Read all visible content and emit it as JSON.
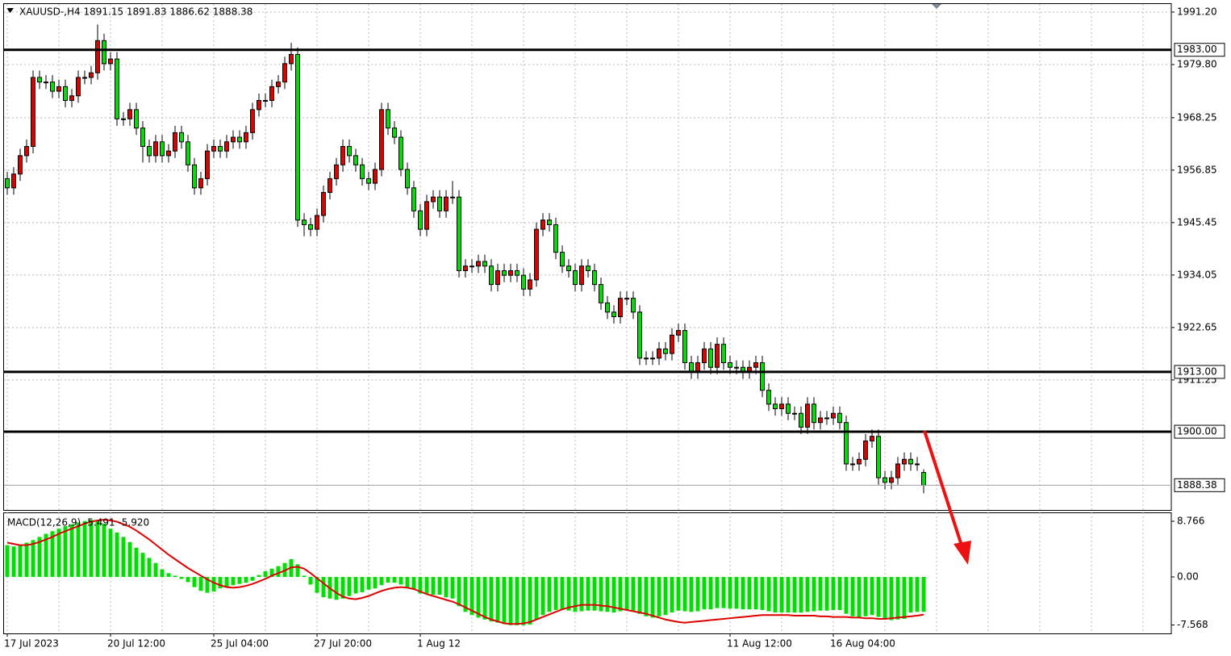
{
  "chart_data": [
    {
      "type": "candlestick",
      "title": "XAUUSD-,H4  1891.15 1891.83 1886.62 1888.38",
      "categories": [
        "17 Jul 2023",
        null,
        null,
        null,
        null,
        null,
        null,
        null,
        null,
        null,
        null,
        null,
        null,
        null,
        null,
        null,
        "20 Jul 12:00",
        null,
        null,
        null,
        null,
        null,
        null,
        null,
        null,
        null,
        null,
        null,
        null,
        null,
        null,
        null,
        "25 Jul 04:00",
        null,
        null,
        null,
        null,
        null,
        null,
        null,
        null,
        null,
        null,
        null,
        null,
        null,
        null,
        null,
        "27 Jul 20:00",
        null,
        null,
        null,
        null,
        null,
        null,
        null,
        null,
        null,
        null,
        null,
        null,
        null,
        null,
        null,
        "1 Aug 12",
        null,
        null,
        null,
        null,
        null,
        null,
        null,
        null,
        null,
        null,
        null,
        null,
        null,
        null,
        null,
        null,
        null,
        null,
        null,
        null,
        null,
        null,
        null,
        null,
        null,
        null,
        null,
        null,
        null,
        null,
        null,
        null,
        null,
        null,
        null,
        null,
        null,
        null,
        null,
        null,
        null,
        null,
        null,
        null,
        null,
        null,
        null,
        "11 Aug 12:00",
        null,
        null,
        null,
        null,
        null,
        null,
        null,
        null,
        null,
        null,
        null,
        null,
        null,
        null,
        null,
        "16 Aug 04:00",
        null,
        null,
        null,
        null,
        null,
        null,
        null,
        null,
        null,
        null,
        null,
        null,
        null,
        null
      ],
      "open": [
        1955,
        1953,
        1956,
        1960,
        1962,
        1977,
        1976,
        1976,
        1974,
        1975,
        1972,
        1973,
        1977,
        1977,
        1978,
        1985,
        1980,
        1981,
        1968,
        1968,
        1970,
        1966,
        1962,
        1960,
        1963,
        1960,
        1961,
        1965,
        1963,
        1958,
        1953,
        1955,
        1961,
        1962,
        1961,
        1963,
        1964,
        1963,
        1965,
        1970,
        1972,
        1972,
        1975,
        1976,
        1980,
        1982,
        1946,
        1945,
        1944,
        1947,
        1952,
        1955,
        1958,
        1962,
        1960,
        1958,
        1955,
        1954,
        1957,
        1970,
        1966,
        1964,
        1957,
        1953,
        1948,
        1944,
        1950,
        1951,
        1948,
        1951,
        1951,
        1935,
        1936,
        1936,
        1937,
        1936,
        1932,
        1935,
        1934,
        1935,
        1934,
        1931,
        1933,
        1944,
        1946,
        1945,
        1939,
        1936,
        1935,
        1932,
        1936,
        1935,
        1932,
        1928,
        1926,
        1925,
        1929,
        1929,
        1926,
        1916,
        1916,
        1916,
        1918,
        1917,
        1921,
        1922,
        1915,
        1913,
        1915,
        1918,
        1914,
        1919,
        1915,
        1914,
        1914,
        1913,
        1914,
        1915,
        1909,
        1906,
        1905,
        1906,
        1904,
        1904,
        1901,
        1906,
        1902,
        1903,
        1903,
        1904,
        1902,
        1893,
        1893,
        1894,
        1898,
        1899,
        1890,
        1889,
        1890,
        1893,
        1894,
        1893,
        1891.15
      ],
      "high": [
        1956.5,
        1957.5,
        1961.5,
        1963.5,
        1978.5,
        1978.5,
        1977.5,
        1977.5,
        1976.5,
        1976.5,
        1974.5,
        1978.5,
        1978.5,
        1979.5,
        1988.5,
        1986.5,
        1982.5,
        1982.5,
        1969.5,
        1971.5,
        1971.5,
        1967.5,
        1963.5,
        1964.5,
        1964.5,
        1962.5,
        1966.5,
        1966.5,
        1964.5,
        1959.5,
        1956.5,
        1962.5,
        1963.5,
        1963.5,
        1964.5,
        1965.5,
        1965.5,
        1966.5,
        1971.5,
        1973.5,
        1973.5,
        1976.5,
        1977.5,
        1981.5,
        1984.5,
        1983.5,
        1947.5,
        1946.5,
        1948.5,
        1953.5,
        1956.5,
        1959.5,
        1963.5,
        1963.5,
        1961.5,
        1959.5,
        1956.5,
        1958.5,
        1971.5,
        1971.5,
        1967.5,
        1965.5,
        1958.5,
        1954.5,
        1949.5,
        1951.5,
        1952.5,
        1952.5,
        1952.5,
        1954.5,
        1952.5,
        1937.5,
        1937.5,
        1938.5,
        1938.5,
        1937.5,
        1936.5,
        1936.5,
        1936.5,
        1936.5,
        1935.5,
        1934.5,
        1945.5,
        1947.5,
        1947.5,
        1946.5,
        1940.5,
        1937.5,
        1936.5,
        1937.5,
        1937.5,
        1936.5,
        1933.5,
        1929.5,
        1927.5,
        1930.5,
        1930.5,
        1930.5,
        1927.5,
        1917.5,
        1917.5,
        1919.5,
        1919.5,
        1922.5,
        1923.5,
        1923.5,
        1916.5,
        1916.5,
        1919.5,
        1919.5,
        1920.5,
        1920.5,
        1916.5,
        1915.5,
        1915.5,
        1915.5,
        1916.5,
        1916.5,
        1910.5,
        1907.5,
        1907.5,
        1907.5,
        1905.5,
        1905.5,
        1907.5,
        1907.5,
        1904.5,
        1904.5,
        1905.5,
        1905.5,
        1903.5,
        1894.5,
        1895.5,
        1899.5,
        1900.5,
        1900.5,
        1891.5,
        1891.5,
        1894.5,
        1895.5,
        1895.5,
        1894.5,
        1891.83
      ],
      "low": [
        1951.5,
        1951.5,
        1954.5,
        1958.5,
        1960.5,
        1974.5,
        1974.5,
        1972.5,
        1972.5,
        1970.5,
        1970.5,
        1971.5,
        1975.5,
        1975.5,
        1976.5,
        1978.5,
        1978.5,
        1966.5,
        1966.5,
        1966.5,
        1964.5,
        1958.5,
        1958.5,
        1958.5,
        1958.5,
        1958.5,
        1959.5,
        1961.5,
        1956.5,
        1951.5,
        1951.5,
        1953.5,
        1959.5,
        1959.5,
        1959.5,
        1961.5,
        1961.5,
        1961.5,
        1963.5,
        1968.5,
        1970.5,
        1970.5,
        1973.5,
        1974.5,
        1978.5,
        1944.5,
        1942.5,
        1942.5,
        1942.5,
        1945.5,
        1950.5,
        1953.5,
        1956.5,
        1958.5,
        1956.5,
        1953.5,
        1952.5,
        1952.5,
        1955.5,
        1964.5,
        1962.5,
        1955.5,
        1951.5,
        1946.5,
        1942.5,
        1942.5,
        1948.5,
        1946.5,
        1946.5,
        1949.5,
        1933.5,
        1933.5,
        1934.5,
        1934.5,
        1934.5,
        1930.5,
        1930.5,
        1932.5,
        1932.5,
        1932.5,
        1929.5,
        1929.5,
        1931.5,
        1942.5,
        1943.5,
        1937.5,
        1934.5,
        1933.5,
        1930.5,
        1930.5,
        1933.5,
        1930.5,
        1926.5,
        1924.5,
        1923.5,
        1923.5,
        1927.5,
        1924.5,
        1914.5,
        1914.5,
        1914.5,
        1914.5,
        1915.5,
        1915.5,
        1919.5,
        1913.5,
        1911.5,
        1911.5,
        1913.5,
        1912.5,
        1912.5,
        1913.5,
        1912.5,
        1912.5,
        1911.5,
        1911.5,
        1912.5,
        1907.5,
        1904.5,
        1903.5,
        1903.5,
        1902.5,
        1902.5,
        1899.5,
        1899.5,
        1900.5,
        1900.5,
        1901.5,
        1901.5,
        1900.5,
        1891.5,
        1891.5,
        1891.5,
        1892.5,
        1896.5,
        1888.5,
        1887.5,
        1887.5,
        1888.5,
        1891.5,
        1891.5,
        1891.5,
        1886.62
      ],
      "close": [
        1953,
        1956,
        1960,
        1962,
        1977,
        1976,
        1976,
        1974,
        1975,
        1972,
        1973,
        1977,
        1977,
        1978,
        1985,
        1980,
        1981,
        1968,
        1968,
        1970,
        1966,
        1962,
        1960,
        1963,
        1960,
        1961,
        1965,
        1963,
        1958,
        1953,
        1955,
        1961,
        1962,
        1961,
        1963,
        1964,
        1963,
        1965,
        1970,
        1972,
        1972,
        1975,
        1976,
        1980,
        1982,
        1946,
        1945,
        1944,
        1947,
        1952,
        1955,
        1958,
        1962,
        1960,
        1958,
        1955,
        1954,
        1957,
        1970,
        1966,
        1964,
        1957,
        1953,
        1948,
        1944,
        1950,
        1951,
        1948,
        1951,
        1951,
        1935,
        1936,
        1936,
        1937,
        1936,
        1932,
        1935,
        1934,
        1935,
        1934,
        1931,
        1933,
        1944,
        1946,
        1945,
        1939,
        1936,
        1935,
        1932,
        1936,
        1935,
        1932,
        1928,
        1926,
        1925,
        1929,
        1929,
        1926,
        1916,
        1916,
        1916,
        1918,
        1917,
        1921,
        1922,
        1915,
        1913,
        1915,
        1918,
        1914,
        1919,
        1915,
        1914,
        1914,
        1913,
        1914,
        1915,
        1909,
        1906,
        1905,
        1906,
        1904,
        1904,
        1901,
        1906,
        1902,
        1903,
        1903,
        1904,
        1902,
        1893,
        1893,
        1894,
        1898,
        1899,
        1890,
        1889,
        1890,
        1893,
        1894,
        1893,
        1893,
        1888.38
      ],
      "up_color": "#e00000",
      "down_color": "#00e000",
      "ylim": [
        1883.0,
        1992.95
      ],
      "yticks": [
        {
          "value": 1991.2,
          "label": "1991.20"
        },
        {
          "value": 1979.8,
          "label": "1979.80"
        },
        {
          "value": 1968.25,
          "label": "1968.25"
        },
        {
          "value": 1956.85,
          "label": "1956.85"
        },
        {
          "value": 1945.45,
          "label": "1945.45"
        },
        {
          "value": 1934.05,
          "label": "1934.05"
        },
        {
          "value": 1922.65,
          "label": "1922.65"
        },
        {
          "value": 1911.25,
          "label": "1911.25"
        }
      ],
      "levels": [
        {
          "value": 1983,
          "label": "1983.00"
        },
        {
          "value": 1913,
          "label": "1913.00"
        },
        {
          "value": 1900,
          "label": "1900.00"
        }
      ],
      "last_price": {
        "value": 1888.38,
        "label": "1888.38"
      },
      "grid": true
    },
    {
      "type": "macd",
      "title": "MACD(12,26,9) -5.491 -5.920",
      "histogram": [
        5.0,
        4.8,
        5.0,
        5.4,
        5.8,
        6.3,
        6.8,
        7.2,
        7.6,
        8.0,
        8.3,
        8.6,
        8.8,
        9.0,
        8.8,
        8.4,
        7.6,
        7.0,
        6.3,
        5.5,
        4.6,
        3.8,
        3.0,
        2.2,
        1.2,
        0.6,
        0.2,
        -0.3,
        -0.8,
        -1.6,
        -2.2,
        -2.5,
        -2.3,
        -1.8,
        -1.6,
        -1.3,
        -1.1,
        -0.9,
        -0.6,
        0.3,
        0.9,
        1.3,
        1.7,
        2.2,
        2.8,
        2.0,
        0.2,
        -1.2,
        -2.5,
        -3.2,
        -3.4,
        -3.6,
        -3.4,
        -3.0,
        -2.6,
        -2.4,
        -2.0,
        -1.8,
        -1.3,
        -0.9,
        -0.9,
        -1.2,
        -1.6,
        -2.0,
        -2.6,
        -2.6,
        -2.8,
        -2.8,
        -3.2,
        -3.4,
        -4.6,
        -5.5,
        -6.0,
        -6.4,
        -6.7,
        -7.0,
        -7.2,
        -7.4,
        -7.6,
        -7.6,
        -7.6,
        -7.5,
        -6.7,
        -6.0,
        -5.5,
        -5.2,
        -5.2,
        -5.3,
        -5.5,
        -5.4,
        -5.3,
        -5.3,
        -5.4,
        -5.5,
        -5.6,
        -5.4,
        -5.3,
        -5.3,
        -5.8,
        -6.2,
        -6.4,
        -6.2,
        -6.0,
        -5.6,
        -5.3,
        -5.4,
        -5.5,
        -5.4,
        -5.1,
        -5.1,
        -4.9,
        -4.9,
        -5.0,
        -5.0,
        -5.1,
        -5.1,
        -5.1,
        -5.2,
        -5.4,
        -5.6,
        -5.6,
        -5.6,
        -5.6,
        -5.6,
        -5.5,
        -5.4,
        -5.3,
        -5.3,
        -5.2,
        -5.2,
        -5.8,
        -6.2,
        -6.3,
        -6.2,
        -6.0,
        -6.3,
        -6.6,
        -6.8,
        -6.7,
        -6.6,
        -5.6,
        -5.5,
        -5.491
      ],
      "signal": [
        5.4,
        5.2,
        5.0,
        5.0,
        5.2,
        5.5,
        5.9,
        6.3,
        6.8,
        7.2,
        7.6,
        8.0,
        8.4,
        8.7,
        8.9,
        9.0,
        8.9,
        8.7,
        8.3,
        7.9,
        7.3,
        6.6,
        5.9,
        5.1,
        4.3,
        3.5,
        2.8,
        2.1,
        1.4,
        0.8,
        0.2,
        -0.4,
        -0.9,
        -1.3,
        -1.6,
        -1.7,
        -1.6,
        -1.4,
        -1.1,
        -0.7,
        -0.3,
        0.2,
        0.6,
        1.0,
        1.5,
        1.6,
        1.3,
        0.6,
        -0.2,
        -1.0,
        -1.8,
        -2.5,
        -3.1,
        -3.4,
        -3.5,
        -3.3,
        -3.0,
        -2.6,
        -2.2,
        -1.9,
        -1.7,
        -1.6,
        -1.7,
        -1.9,
        -2.3,
        -2.7,
        -3.0,
        -3.3,
        -3.6,
        -3.9,
        -4.3,
        -4.8,
        -5.3,
        -5.8,
        -6.3,
        -6.7,
        -7.0,
        -7.3,
        -7.4,
        -7.4,
        -7.3,
        -7.1,
        -6.7,
        -6.3,
        -5.9,
        -5.5,
        -5.1,
        -4.8,
        -4.6,
        -4.4,
        -4.4,
        -4.4,
        -4.5,
        -4.6,
        -4.8,
        -5.0,
        -5.2,
        -5.4,
        -5.6,
        -5.8,
        -6.1,
        -6.4,
        -6.7,
        -6.9,
        -7.1,
        -7.2,
        -7.1,
        -7.0,
        -6.9,
        -6.8,
        -6.7,
        -6.6,
        -6.5,
        -6.4,
        -6.3,
        -6.2,
        -6.1,
        -6.0,
        -6.0,
        -6.0,
        -6.0,
        -6.0,
        -6.1,
        -6.1,
        -6.1,
        -6.1,
        -6.2,
        -6.2,
        -6.3,
        -6.3,
        -6.3,
        -6.4,
        -6.4,
        -6.5,
        -6.5,
        -6.6,
        -6.6,
        -6.5,
        -6.4,
        -6.3,
        -6.2,
        -6.1,
        -5.92
      ],
      "histogram_color": "#00e000",
      "signal_color": "#e00000",
      "ylim": [
        -8.89,
        10.04
      ],
      "yticks": [
        8.766,
        {
          "value": 0,
          "label": "0.00"
        },
        -7.568
      ],
      "grid": true
    }
  ]
}
